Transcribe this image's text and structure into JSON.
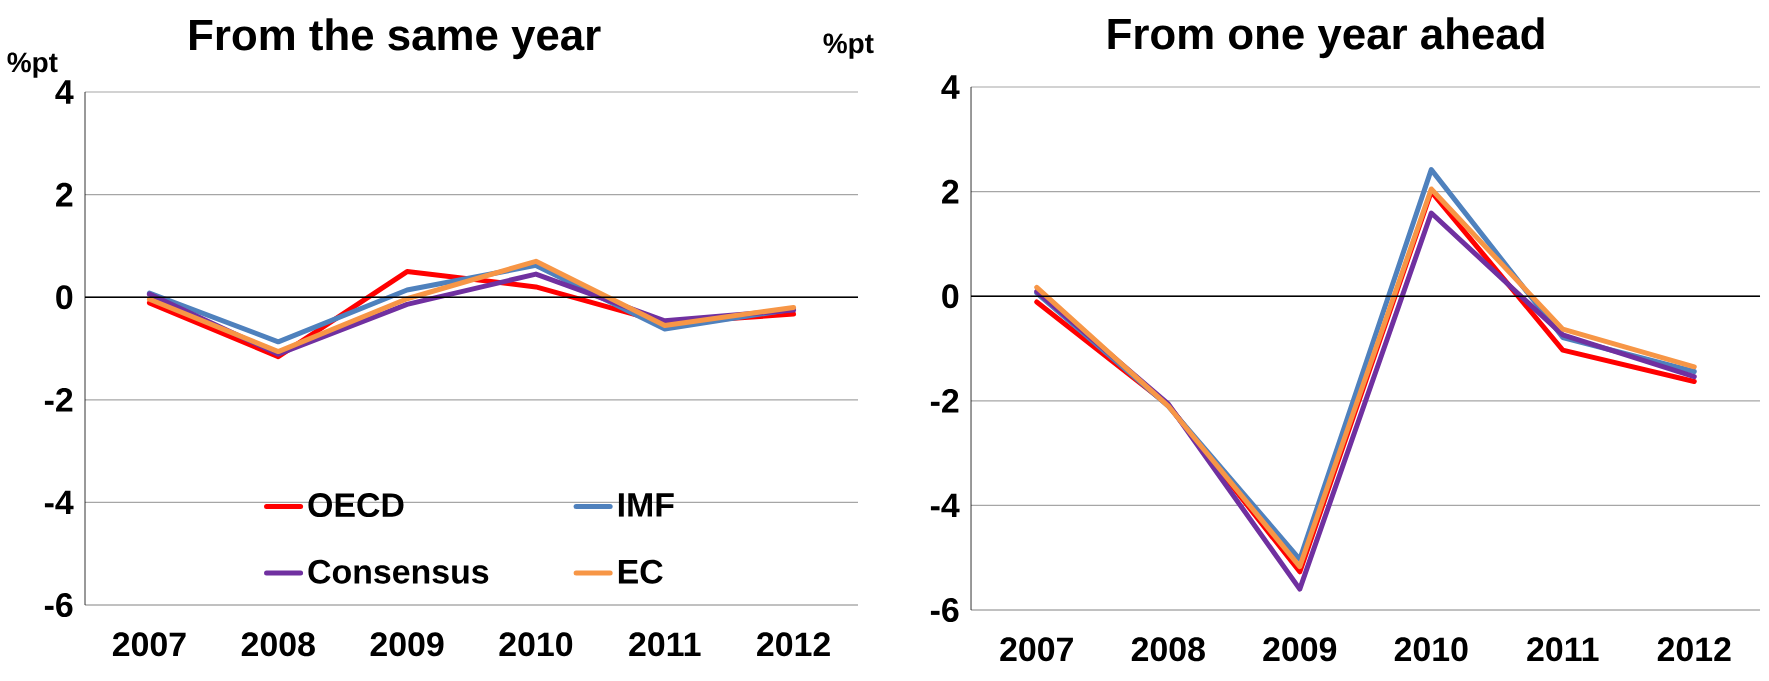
{
  "chart_data": [
    {
      "type": "line",
      "title": "From the same year",
      "ylabel": "%pt",
      "categories": [
        "2007",
        "2008",
        "2009",
        "2010",
        "2011",
        "2012"
      ],
      "series": [
        {
          "name": "OECD",
          "color": "#ff0000",
          "values": [
            -0.11,
            -1.16,
            0.5,
            0.2,
            -0.5,
            -0.33
          ]
        },
        {
          "name": "IMF",
          "color": "#4f81bd",
          "values": [
            0.08,
            -0.87,
            0.14,
            0.62,
            -0.62,
            -0.23
          ]
        },
        {
          "name": "Consensus",
          "color": "#7030a0",
          "values": [
            0.06,
            -1.11,
            -0.14,
            0.45,
            -0.46,
            -0.25
          ]
        },
        {
          "name": "EC",
          "color": "#f79646",
          "values": [
            -0.04,
            -1.06,
            -0.03,
            0.7,
            -0.55,
            -0.2
          ]
        }
      ],
      "ylim": [
        -6,
        4
      ],
      "yticks": [
        -6,
        -4,
        -2,
        0,
        2,
        4
      ],
      "grid": "y",
      "legend": "bottom",
      "marker": "none",
      "line_style": "solid"
    },
    {
      "type": "line",
      "title": "From one year ahead",
      "ylabel": "%pt",
      "categories": [
        "2007",
        "2008",
        "2009",
        "2010",
        "2011",
        "2012"
      ],
      "series": [
        {
          "color": "#ff0000",
          "values": [
            -0.11,
            -2.08,
            -5.27,
            2.0,
            -1.03,
            -1.63
          ]
        },
        {
          "color": "#4f81bd",
          "values": [
            0.06,
            -2.1,
            -5.03,
            2.42,
            -0.79,
            -1.44
          ]
        },
        {
          "color": "#7030a0",
          "values": [
            0.09,
            -2.06,
            -5.6,
            1.59,
            -0.74,
            -1.54
          ]
        },
        {
          "color": "#f79646",
          "values": [
            0.17,
            -2.1,
            -5.17,
            2.05,
            -0.63,
            -1.35
          ]
        }
      ],
      "ylim": [
        -6,
        4
      ],
      "yticks": [
        -6,
        -4,
        -2,
        0,
        2,
        4
      ],
      "grid": "y",
      "legend": false,
      "marker": "none",
      "line_style": "solid"
    }
  ]
}
